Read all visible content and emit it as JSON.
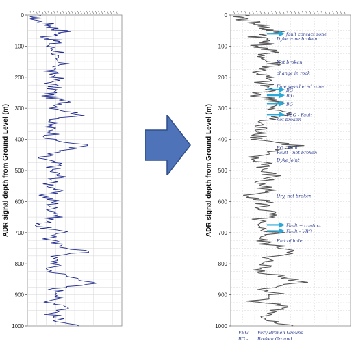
{
  "chart_data": [
    {
      "type": "line",
      "ylabel": "ADR signal depth from Ground Level (m)",
      "ylim": [
        0,
        1000
      ],
      "y_ticks": [
        "0",
        "100",
        "200",
        "300",
        "400",
        "500",
        "600",
        "700",
        "800",
        "900",
        "1000"
      ],
      "grid": true,
      "line_color": "#1f2a8c",
      "profile": [
        {
          "y": 0,
          "x": 0.05
        },
        {
          "y": 15,
          "x": 0.1
        },
        {
          "y": 30,
          "x": 0.3
        },
        {
          "y": 45,
          "x": 0.42
        },
        {
          "y": 55,
          "x": 0.6
        },
        {
          "y": 70,
          "x": 0.28
        },
        {
          "y": 85,
          "x": 0.45
        },
        {
          "y": 100,
          "x": 0.3
        },
        {
          "y": 120,
          "x": 0.5
        },
        {
          "y": 140,
          "x": 0.32
        },
        {
          "y": 160,
          "x": 0.55
        },
        {
          "y": 180,
          "x": 0.3
        },
        {
          "y": 200,
          "x": 0.45
        },
        {
          "y": 220,
          "x": 0.35
        },
        {
          "y": 240,
          "x": 0.4
        },
        {
          "y": 260,
          "x": 0.3
        },
        {
          "y": 280,
          "x": 0.58
        },
        {
          "y": 300,
          "x": 0.45
        },
        {
          "y": 320,
          "x": 0.85
        },
        {
          "y": 340,
          "x": 0.35
        },
        {
          "y": 360,
          "x": 0.3
        },
        {
          "y": 380,
          "x": 0.4
        },
        {
          "y": 400,
          "x": 0.3
        },
        {
          "y": 420,
          "x": 0.95
        },
        {
          "y": 440,
          "x": 0.4
        },
        {
          "y": 460,
          "x": 0.15
        },
        {
          "y": 480,
          "x": 0.45
        },
        {
          "y": 500,
          "x": 0.35
        },
        {
          "y": 520,
          "x": 0.5
        },
        {
          "y": 540,
          "x": 0.3
        },
        {
          "y": 560,
          "x": 0.45
        },
        {
          "y": 580,
          "x": 0.25
        },
        {
          "y": 600,
          "x": 0.4
        },
        {
          "y": 620,
          "x": 0.35
        },
        {
          "y": 640,
          "x": 0.5
        },
        {
          "y": 660,
          "x": 0.3
        },
        {
          "y": 680,
          "x": 0.15
        },
        {
          "y": 700,
          "x": 0.55
        },
        {
          "y": 720,
          "x": 0.3
        },
        {
          "y": 740,
          "x": 0.45
        },
        {
          "y": 760,
          "x": 0.95
        },
        {
          "y": 780,
          "x": 0.35
        },
        {
          "y": 800,
          "x": 0.45
        },
        {
          "y": 820,
          "x": 0.3
        },
        {
          "y": 840,
          "x": 0.6
        },
        {
          "y": 860,
          "x": 1.1
        },
        {
          "y": 880,
          "x": 0.4
        },
        {
          "y": 900,
          "x": 0.55
        },
        {
          "y": 920,
          "x": 0.3
        },
        {
          "y": 940,
          "x": 0.7
        },
        {
          "y": 960,
          "x": 0.35
        },
        {
          "y": 980,
          "x": 0.45
        },
        {
          "y": 1000,
          "x": 0.8
        }
      ]
    },
    {
      "type": "line",
      "ylabel": "ADR signal depth from Ground Level (m)",
      "ylim": [
        0,
        1000
      ],
      "y_ticks": [
        "0",
        "100",
        "200",
        "300",
        "400",
        "500",
        "600",
        "700",
        "800",
        "900",
        "1000"
      ],
      "grid": true,
      "line_color": "#555555",
      "profile": [
        {
          "y": 0,
          "x": 0.05
        },
        {
          "y": 15,
          "x": 0.15
        },
        {
          "y": 30,
          "x": 0.35
        },
        {
          "y": 45,
          "x": 0.4
        },
        {
          "y": 55,
          "x": 0.55
        },
        {
          "y": 70,
          "x": 0.3
        },
        {
          "y": 85,
          "x": 0.5
        },
        {
          "y": 100,
          "x": 0.3
        },
        {
          "y": 120,
          "x": 0.45
        },
        {
          "y": 140,
          "x": 0.35
        },
        {
          "y": 160,
          "x": 0.55
        },
        {
          "y": 180,
          "x": 0.3
        },
        {
          "y": 200,
          "x": 0.4
        },
        {
          "y": 220,
          "x": 0.35
        },
        {
          "y": 240,
          "x": 0.45
        },
        {
          "y": 260,
          "x": 0.3
        },
        {
          "y": 280,
          "x": 0.6
        },
        {
          "y": 300,
          "x": 0.4
        },
        {
          "y": 320,
          "x": 0.75
        },
        {
          "y": 340,
          "x": 0.35
        },
        {
          "y": 360,
          "x": 0.3
        },
        {
          "y": 380,
          "x": 0.4
        },
        {
          "y": 400,
          "x": 0.3
        },
        {
          "y": 420,
          "x": 0.8
        },
        {
          "y": 440,
          "x": 0.4
        },
        {
          "y": 460,
          "x": 0.2
        },
        {
          "y": 480,
          "x": 0.45
        },
        {
          "y": 500,
          "x": 0.35
        },
        {
          "y": 520,
          "x": 0.5
        },
        {
          "y": 540,
          "x": 0.3
        },
        {
          "y": 560,
          "x": 0.45
        },
        {
          "y": 580,
          "x": 0.25
        },
        {
          "y": 600,
          "x": 0.4
        },
        {
          "y": 620,
          "x": 0.35
        },
        {
          "y": 640,
          "x": 0.45
        },
        {
          "y": 660,
          "x": 0.3
        },
        {
          "y": 680,
          "x": 0.2
        },
        {
          "y": 700,
          "x": 0.55
        },
        {
          "y": 720,
          "x": 0.3
        },
        {
          "y": 740,
          "x": 0.45
        },
        {
          "y": 760,
          "x": 0.85
        },
        {
          "y": 780,
          "x": 0.35
        },
        {
          "y": 800,
          "x": 0.45
        },
        {
          "y": 820,
          "x": 0.3
        },
        {
          "y": 840,
          "x": 0.6
        },
        {
          "y": 860,
          "x": 0.9
        },
        {
          "y": 880,
          "x": 0.4
        },
        {
          "y": 900,
          "x": 0.55
        },
        {
          "y": 920,
          "x": 0.3
        },
        {
          "y": 940,
          "x": 0.7
        },
        {
          "y": 960,
          "x": 0.35
        },
        {
          "y": 980,
          "x": 0.45
        },
        {
          "y": 1000,
          "x": 0.75
        }
      ],
      "annotations": [
        {
          "depth": 60,
          "text": "fault contact zone",
          "arrow": true
        },
        {
          "depth": 75,
          "text": "Dyke zone broken",
          "arrow": false
        },
        {
          "depth": 150,
          "text": "Not broken",
          "arrow": false
        },
        {
          "depth": 185,
          "text": "change in rock",
          "arrow": false
        },
        {
          "depth": 228,
          "text": "Fine weathered zone",
          "arrow": false
        },
        {
          "depth": 240,
          "text": "BG",
          "arrow": true
        },
        {
          "depth": 258,
          "text": "B.G",
          "arrow": true
        },
        {
          "depth": 285,
          "text": "BG",
          "arrow": true
        },
        {
          "depth": 320,
          "text": "VBG - Fault",
          "arrow": true
        },
        {
          "depth": 335,
          "text": "not broken",
          "arrow": false
        },
        {
          "depth": 425,
          "text": "BG - Fault",
          "arrow": false
        },
        {
          "depth": 440,
          "text": "Fault - not broken",
          "arrow": false
        },
        {
          "depth": 465,
          "text": "Dyke joint",
          "arrow": false
        },
        {
          "depth": 580,
          "text": "Dry, not broken",
          "arrow": false
        },
        {
          "depth": 675,
          "text": "Fault + contact",
          "arrow": true
        },
        {
          "depth": 695,
          "text": "Fault - VBG",
          "arrow": true
        },
        {
          "depth": 725,
          "text": "End of hole",
          "arrow": false
        }
      ],
      "legend": [
        {
          "key": "VBG -",
          "text": "Very Broken Ground"
        },
        {
          "key": "BG -",
          "text": "Broken Ground"
        }
      ]
    }
  ]
}
